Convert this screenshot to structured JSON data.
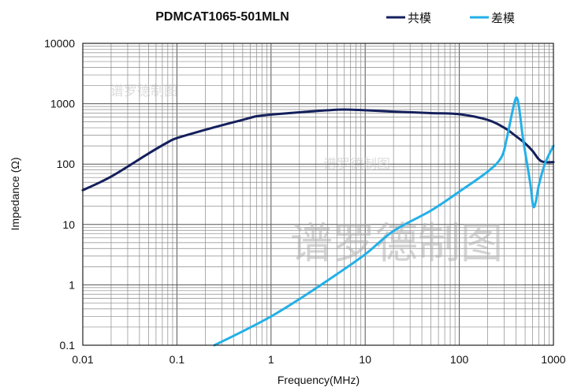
{
  "chart_data": {
    "type": "line",
    "title": "PDMCAT1065-501MLN",
    "xlabel": "Frequency(MHz)",
    "ylabel": "Impedance (Ω)",
    "x_scale": "log",
    "y_scale": "log",
    "xlim": [
      0.01,
      1000
    ],
    "ylim": [
      0.1,
      10000
    ],
    "x_ticks": [
      "0.01",
      "0.1",
      "1",
      "10",
      "100",
      "1000"
    ],
    "y_ticks": [
      "0.1",
      "1",
      "10",
      "100",
      "1000",
      "10000"
    ],
    "grid": true,
    "legend_position": "top-right",
    "watermarks": [
      "谱罗德制图",
      "谱罗德制图",
      "谱罗德制图"
    ],
    "series": [
      {
        "name": "共模",
        "color": "#14205c",
        "points": [
          [
            0.01,
            37
          ],
          [
            0.02,
            62
          ],
          [
            0.05,
            150
          ],
          [
            0.08,
            230
          ],
          [
            0.1,
            270
          ],
          [
            0.2,
            370
          ],
          [
            0.3,
            440
          ],
          [
            0.5,
            540
          ],
          [
            0.7,
            620
          ],
          [
            1,
            660
          ],
          [
            2,
            720
          ],
          [
            4,
            780
          ],
          [
            6,
            800
          ],
          [
            10,
            780
          ],
          [
            20,
            740
          ],
          [
            50,
            700
          ],
          [
            100,
            670
          ],
          [
            200,
            540
          ],
          [
            300,
            400
          ],
          [
            400,
            290
          ],
          [
            500,
            220
          ],
          [
            600,
            165
          ],
          [
            700,
            120
          ],
          [
            800,
            108
          ],
          [
            1000,
            108
          ]
        ]
      },
      {
        "name": "差模",
        "color": "#23b0e8",
        "points": [
          [
            0.25,
            0.1
          ],
          [
            0.5,
            0.17
          ],
          [
            1,
            0.3
          ],
          [
            2,
            0.58
          ],
          [
            5,
            1.5
          ],
          [
            10,
            3.2
          ],
          [
            20,
            7.8
          ],
          [
            50,
            17
          ],
          [
            100,
            35
          ],
          [
            200,
            75
          ],
          [
            280,
            130
          ],
          [
            320,
            270
          ],
          [
            360,
            650
          ],
          [
            400,
            1250
          ],
          [
            430,
            900
          ],
          [
            470,
            300
          ],
          [
            520,
            110
          ],
          [
            570,
            45
          ],
          [
            610,
            20
          ],
          [
            650,
            24
          ],
          [
            700,
            45
          ],
          [
            800,
            95
          ],
          [
            900,
            145
          ],
          [
            1000,
            200
          ]
        ]
      }
    ]
  }
}
